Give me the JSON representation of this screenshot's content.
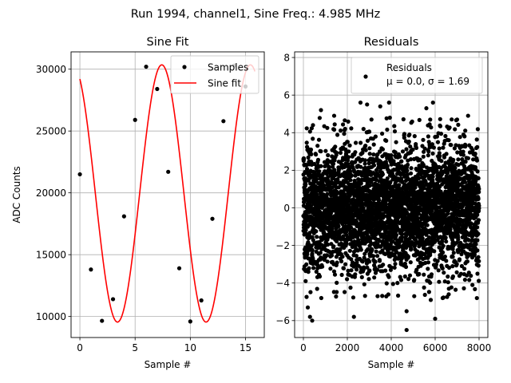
{
  "figure": {
    "suptitle": "Run 1994, channel1, Sine Freq.: 4.985 MHz"
  },
  "chart_data": [
    {
      "type": "line",
      "title": "Sine Fit",
      "xlabel": "Sample #",
      "ylabel": "ADC Counts",
      "xlim": [
        -0.8,
        16.7
      ],
      "ylim": [
        8300,
        31400
      ],
      "xticks": [
        0,
        5,
        10,
        15
      ],
      "yticks": [
        10000,
        15000,
        20000,
        25000,
        30000
      ],
      "grid": true,
      "legend_position": "top-right",
      "series": [
        {
          "name": "Samples",
          "kind": "scatter",
          "color": "#000000",
          "x": [
            0,
            1,
            2,
            3,
            4,
            5,
            6,
            7,
            8,
            9,
            10,
            11,
            12,
            13,
            14,
            15
          ],
          "y": [
            21500,
            13800,
            9650,
            11400,
            18100,
            25900,
            30200,
            28400,
            21700,
            13900,
            9600,
            11300,
            17900,
            25800,
            30300,
            28600
          ]
        },
        {
          "name": "Sine fit",
          "kind": "line",
          "color": "#ff0000",
          "model": {
            "offset": 19950,
            "amplitude": 10400,
            "period": 8.023,
            "phase_sample": 1.4,
            "x_start": 0,
            "x_end": 15.85
          }
        }
      ]
    },
    {
      "type": "scatter",
      "title": "Residuals",
      "xlabel": "Sample #",
      "ylabel": "",
      "xlim": [
        -400,
        8400
      ],
      "ylim": [
        -6.9,
        8.3
      ],
      "xticks": [
        0,
        2000,
        4000,
        6000,
        8000
      ],
      "yticks": [
        -6,
        -4,
        -2,
        0,
        2,
        4,
        6,
        8
      ],
      "grid": true,
      "legend_position": "top-right",
      "series": [
        {
          "name": "Residuals",
          "legend_line2": "μ = 0.0, σ = 1.69",
          "color": "#000000",
          "n_points": 8000,
          "x_range": [
            0,
            8000
          ],
          "mean": 0.0,
          "std": 1.69,
          "notable_points": [
            [
              200,
              -5.3
            ],
            [
              300,
              -5.8
            ],
            [
              400,
              -6.0
            ],
            [
              2300,
              -5.8
            ],
            [
              4700,
              -6.5
            ],
            [
              6000,
              -5.9
            ],
            [
              4700,
              -5.5
            ],
            [
              5800,
              -4.9
            ],
            [
              7900,
              -4.8
            ],
            [
              800,
              5.2
            ],
            [
              2600,
              5.6
            ],
            [
              2900,
              5.5
            ],
            [
              3500,
              5.4
            ],
            [
              3900,
              5.6
            ],
            [
              5600,
              5.3
            ],
            [
              5900,
              5.6
            ],
            [
              7000,
              4.7
            ],
            [
              7500,
              4.9
            ],
            [
              1400,
              4.9
            ],
            [
              3100,
              4.7
            ]
          ]
        }
      ]
    }
  ]
}
